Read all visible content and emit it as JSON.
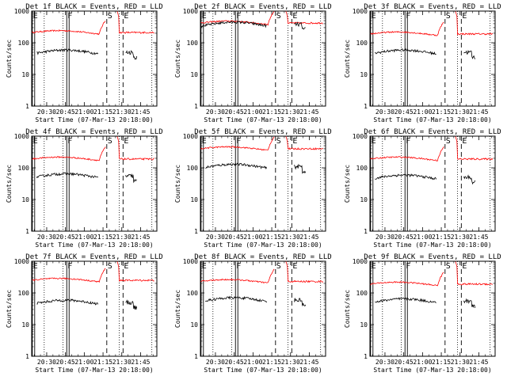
{
  "panels": [
    {
      "title": "Det 1f BLACK = Events, RED = LLD",
      "events_level": 50,
      "lld_level": 210,
      "events_spike": false
    },
    {
      "title": "Det 2f BLACK = Events, RED = LLD",
      "events_level": 380,
      "lld_level": 420,
      "events_spike": true
    },
    {
      "title": "Det 3f BLACK = Events, RED = LLD",
      "events_level": 50,
      "lld_level": 190,
      "events_spike": false
    },
    {
      "title": "Det 4f BLACK = Events, RED = LLD",
      "events_level": 55,
      "lld_level": 190,
      "events_spike": false
    },
    {
      "title": "Det 5f BLACK = Events, RED = LLD",
      "events_level": 110,
      "lld_level": 400,
      "events_spike": false
    },
    {
      "title": "Det 6f BLACK = Events, RED = LLD",
      "events_level": 50,
      "lld_level": 190,
      "events_spike": false
    },
    {
      "title": "Det 7f BLACK = Events, RED = LLD",
      "events_level": 50,
      "lld_level": 250,
      "events_spike": false
    },
    {
      "title": "Det 8f BLACK = Events, RED = LLD",
      "events_level": 60,
      "lld_level": 230,
      "events_spike": false
    },
    {
      "title": "Det 9f BLACK = Events, RED = LLD",
      "events_level": 55,
      "lld_level": 190,
      "events_spike": false
    }
  ],
  "chart_data": {
    "type": "line",
    "ylabel": "Counts/sec",
    "xlabel": "Start Time (07-Mar-13 20:18:00)",
    "yscale": "log",
    "ylim": [
      1,
      1000
    ],
    "y_ticks": [
      "1",
      "10",
      "100",
      "1000"
    ],
    "x_ticks": [
      "20:30",
      "20:45",
      "21:00",
      "21:15",
      "21:30",
      "21:45"
    ],
    "x_range_minutes": [
      18,
      118
    ],
    "markers": [
      {
        "label": "E",
        "minute": 18.5,
        "style": "solid"
      },
      {
        "label": "F",
        "minute": 46,
        "style": "solid"
      },
      {
        "label": "S",
        "minute": 78,
        "style": "dashed"
      },
      {
        "label": "E",
        "minute": 91,
        "style": "dashed"
      }
    ],
    "dotted_lines_minutes": [
      28,
      43,
      88,
      114
    ],
    "series": [
      {
        "name": "BLACK = Events",
        "color": "#000000"
      },
      {
        "name": "RED = LLD",
        "color": "#ff0000"
      }
    ]
  }
}
